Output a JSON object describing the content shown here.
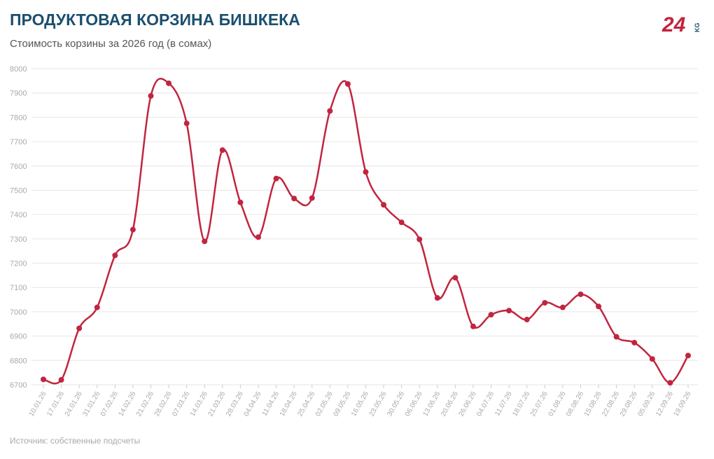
{
  "chart_data": {
    "type": "line",
    "title": "ПРОДУКТОВАЯ КОРЗИНА БИШКЕКА",
    "subtitle": "Стоимость корзины за 2026 год (в сомах)",
    "source": "Источник: собственные подсчеты",
    "logo": {
      "number": "24",
      "suffix": "KG"
    },
    "categories": [
      "10.01.26",
      "17.01.26",
      "24.01.26",
      "31.01.26",
      "07.02.26",
      "14.02.26",
      "21.02.26",
      "28.02.26",
      "07.03.26",
      "14.03.26",
      "21.03.26",
      "28.03.26",
      "04.04.26",
      "11.04.26",
      "18.04.26",
      "25.04.26",
      "02.05.26",
      "09.05.26",
      "16.05.26",
      "23.05.26",
      "30.05.26",
      "06.06.26",
      "13.06.26",
      "20.06.26",
      "26.06.26",
      "04.07.26",
      "11.07.26",
      "18.07.26",
      "25.07.26",
      "01.08.26",
      "08.08.26",
      "15.08.26",
      "22.08.26",
      "29.08.26",
      "05.09.26",
      "12.09.26",
      "19.09.26"
    ],
    "series": [
      {
        "color": "#c1253f",
        "values": [
          6722,
          6720,
          6932,
          7018,
          7232,
          7338,
          7888,
          7940,
          7775,
          7290,
          7665,
          7450,
          7307,
          7548,
          7466,
          7468,
          7826,
          7937,
          7575,
          7440,
          7368,
          7298,
          7057,
          7140,
          6940,
          6988,
          7005,
          6968,
          7037,
          7018,
          7072,
          7022,
          6897,
          6873,
          6806,
          6708,
          6820
        ]
      }
    ],
    "ylim": [
      6700,
      8000
    ],
    "yticks": [
      6700,
      6800,
      6900,
      7000,
      7100,
      7200,
      7300,
      7400,
      7500,
      7600,
      7700,
      7800,
      7900,
      8000
    ],
    "grid": true
  }
}
